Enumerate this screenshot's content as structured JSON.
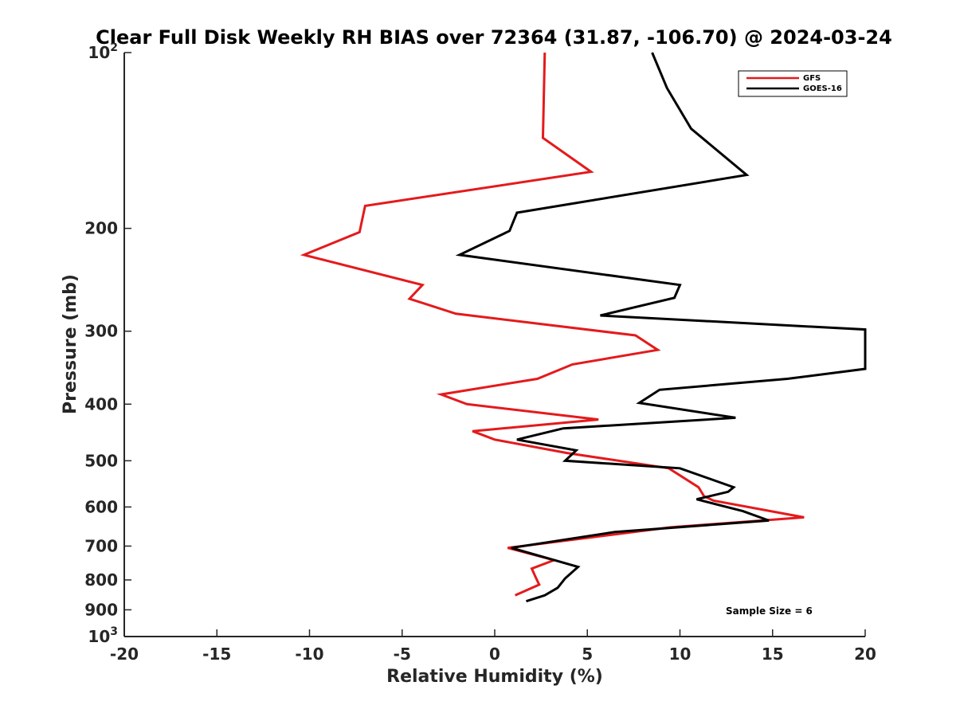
{
  "chart_data": {
    "type": "line",
    "title": "Clear Full Disk Weekly RH BIAS over 72364 (31.87, -106.70) @ 2024-03-24",
    "xlabel": "Relative Humidity (%)",
    "ylabel": "Pressure (mb)",
    "xlim": [
      -20,
      20
    ],
    "ylim": [
      100,
      1000
    ],
    "yscale": "log",
    "y_reversed": true,
    "grid": false,
    "legend_position": "top-right",
    "x_ticks": [
      "-20",
      "-15",
      "-10",
      "-5",
      "0",
      "5",
      "10",
      "15",
      "20"
    ],
    "y_ticks": [
      {
        "value": 100,
        "base": "10",
        "exp": "2"
      },
      {
        "value": 200,
        "label": "200"
      },
      {
        "value": 300,
        "label": "300"
      },
      {
        "value": 400,
        "label": "400"
      },
      {
        "value": 500,
        "label": "500"
      },
      {
        "value": 600,
        "label": "600"
      },
      {
        "value": 700,
        "label": "700"
      },
      {
        "value": 800,
        "label": "800"
      },
      {
        "value": 900,
        "label": "900"
      },
      {
        "value": 1000,
        "base": "10",
        "exp": "3"
      }
    ],
    "annotation": "Sample Size = 6",
    "series": [
      {
        "name": "GFS",
        "color": "#e41a1c",
        "points": [
          [
            2.7,
            100
          ],
          [
            2.6,
            140
          ],
          [
            5.2,
            160
          ],
          [
            -7.0,
            183
          ],
          [
            -7.3,
            203
          ],
          [
            -10.3,
            222
          ],
          [
            -3.9,
            250
          ],
          [
            -4.6,
            264
          ],
          [
            -2.1,
            280
          ],
          [
            7.6,
            305
          ],
          [
            8.8,
            323
          ],
          [
            4.2,
            342
          ],
          [
            2.3,
            362
          ],
          [
            -2.9,
            385
          ],
          [
            -1.5,
            400
          ],
          [
            5.6,
            425
          ],
          [
            -1.2,
            445
          ],
          [
            0.0,
            460
          ],
          [
            3.9,
            485
          ],
          [
            9.4,
            515
          ],
          [
            11.0,
            555
          ],
          [
            11.3,
            575
          ],
          [
            11.8,
            585
          ],
          [
            16.7,
            625
          ],
          [
            9.5,
            650
          ],
          [
            0.7,
            705
          ],
          [
            3.2,
            740
          ],
          [
            2.0,
            765
          ],
          [
            2.2,
            790
          ],
          [
            2.4,
            815
          ],
          [
            1.1,
            850
          ]
        ]
      },
      {
        "name": "GOES-16",
        "color": "#000000",
        "points": [
          [
            8.5,
            100
          ],
          [
            9.3,
            115
          ],
          [
            10.6,
            135
          ],
          [
            13.6,
            162
          ],
          [
            1.2,
            188
          ],
          [
            0.8,
            202
          ],
          [
            -1.9,
            222
          ],
          [
            10.0,
            250
          ],
          [
            9.7,
            263
          ],
          [
            5.7,
            282
          ],
          [
            20.0,
            298
          ],
          [
            20.0,
            348
          ],
          [
            15.8,
            362
          ],
          [
            8.9,
            378
          ],
          [
            7.8,
            398
          ],
          [
            13.0,
            422
          ],
          [
            3.7,
            440
          ],
          [
            1.2,
            460
          ],
          [
            4.4,
            480
          ],
          [
            3.8,
            500
          ],
          [
            10.0,
            515
          ],
          [
            12.9,
            555
          ],
          [
            12.6,
            565
          ],
          [
            10.9,
            582
          ],
          [
            13.4,
            610
          ],
          [
            14.8,
            633
          ],
          [
            6.5,
            662
          ],
          [
            0.9,
            705
          ],
          [
            4.5,
            760
          ],
          [
            3.8,
            795
          ],
          [
            3.4,
            825
          ],
          [
            2.7,
            850
          ],
          [
            1.7,
            870
          ]
        ]
      }
    ]
  }
}
